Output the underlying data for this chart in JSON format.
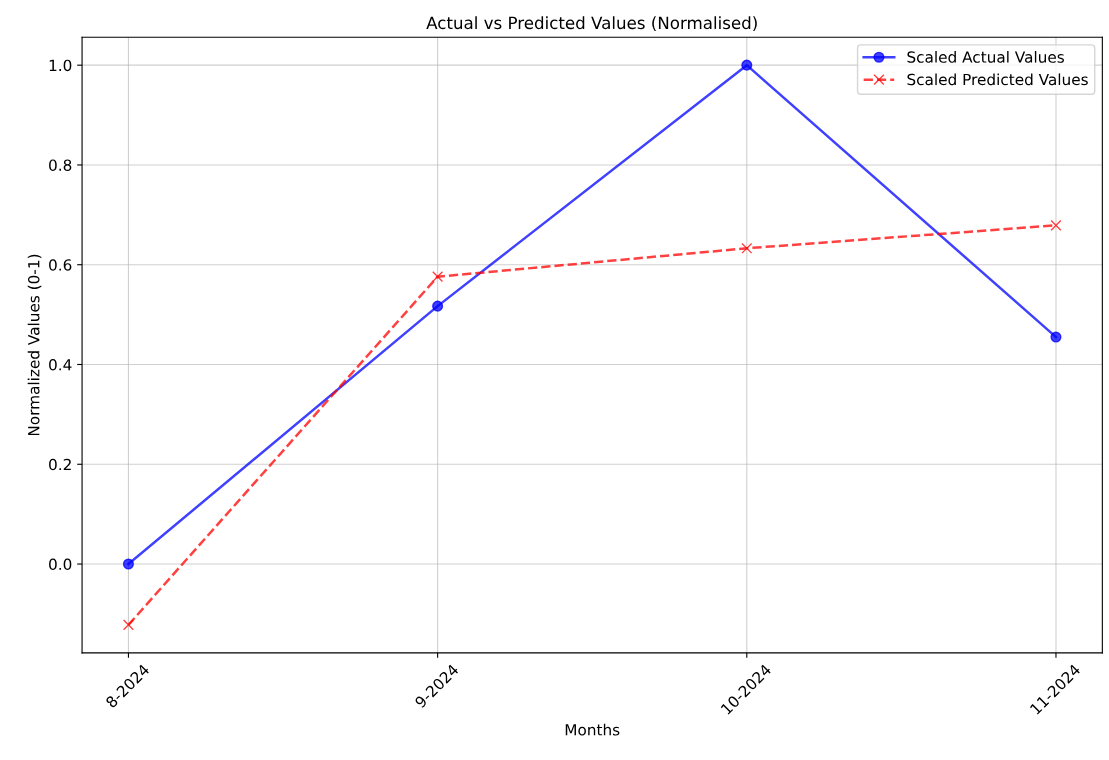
{
  "chart_data": {
    "type": "line",
    "title": "Actual vs Predicted Values (Normalised)",
    "xlabel": "Months",
    "ylabel": "Normalized Values (0-1)",
    "categories": [
      "8-2024",
      "9-2024",
      "10-2024",
      "11-2024"
    ],
    "series": [
      {
        "name": "Scaled Actual Values",
        "color": "#0000ff",
        "values": [
          0.0,
          0.517,
          1.0,
          0.455
        ],
        "marker": "circle",
        "line_style": "solid"
      },
      {
        "name": "Scaled Predicted Values",
        "color": "#ff0000",
        "values": [
          -0.122,
          0.576,
          0.633,
          0.679
        ],
        "marker": "cross",
        "line_style": "dashed"
      }
    ],
    "ylim": [
      -0.178,
      1.056
    ],
    "yticks": [
      {
        "value": 0,
        "label": "0.0"
      },
      0.2,
      0.4,
      0.6,
      0.8,
      {
        "value": 1,
        "label": "1.0"
      }
    ],
    "grid": true,
    "legend": "top right"
  }
}
